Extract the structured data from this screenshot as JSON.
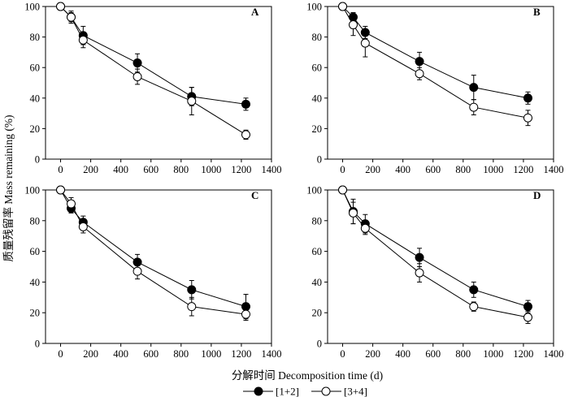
{
  "figure": {
    "ylabel": "质量残留率 Mass remaining (%)",
    "xlabel": "分解时间 Decomposition time (d)"
  },
  "legend": {
    "items": [
      {
        "label": "[1+2]",
        "marker": "filled-circle",
        "color": "#000000"
      },
      {
        "label": "[3+4]",
        "marker": "open-circle",
        "color": "#000000"
      }
    ]
  },
  "chart_data": [
    {
      "type": "line",
      "panel": "A",
      "x": [
        0,
        70,
        150,
        510,
        870,
        1230
      ],
      "xlim": [
        -100,
        1400
      ],
      "ylim": [
        0,
        100
      ],
      "xticks": [
        0,
        200,
        400,
        600,
        800,
        1000,
        1200,
        1400
      ],
      "yticks": [
        0,
        20,
        40,
        60,
        80,
        100
      ],
      "series": [
        {
          "name": "[1+2]",
          "values": [
            100,
            93,
            81,
            63,
            41,
            36
          ],
          "errors": [
            0,
            3,
            6,
            6,
            6,
            4
          ]
        },
        {
          "name": "[3+4]",
          "values": [
            100,
            93,
            78,
            54,
            38,
            16
          ],
          "errors": [
            0,
            4,
            5,
            5,
            9,
            3
          ]
        }
      ]
    },
    {
      "type": "line",
      "panel": "B",
      "x": [
        0,
        70,
        150,
        510,
        870,
        1230
      ],
      "xlim": [
        -100,
        1400
      ],
      "ylim": [
        0,
        100
      ],
      "xticks": [
        0,
        200,
        400,
        600,
        800,
        1000,
        1200,
        1400
      ],
      "yticks": [
        0,
        20,
        40,
        60,
        80,
        100
      ],
      "series": [
        {
          "name": "[1+2]",
          "values": [
            100,
            93,
            83,
            64,
            47,
            40
          ],
          "errors": [
            0,
            3,
            4,
            6,
            8,
            4
          ]
        },
        {
          "name": "[3+4]",
          "values": [
            100,
            88,
            76,
            56,
            34,
            27
          ],
          "errors": [
            0,
            7,
            9,
            4,
            5,
            5
          ]
        }
      ]
    },
    {
      "type": "line",
      "panel": "C",
      "x": [
        0,
        70,
        150,
        510,
        870,
        1230
      ],
      "xlim": [
        -100,
        1400
      ],
      "ylim": [
        0,
        100
      ],
      "xticks": [
        0,
        200,
        400,
        600,
        800,
        1000,
        1200,
        1400
      ],
      "yticks": [
        0,
        20,
        40,
        60,
        80,
        100
      ],
      "series": [
        {
          "name": "[1+2]",
          "values": [
            100,
            88,
            79,
            53,
            35,
            24
          ],
          "errors": [
            0,
            3,
            4,
            5,
            6,
            8
          ]
        },
        {
          "name": "[3+4]",
          "values": [
            100,
            91,
            76,
            47,
            24,
            19
          ],
          "errors": [
            0,
            4,
            4,
            5,
            6,
            4
          ]
        }
      ]
    },
    {
      "type": "line",
      "panel": "D",
      "x": [
        0,
        70,
        150,
        510,
        870,
        1230
      ],
      "xlim": [
        -100,
        1400
      ],
      "ylim": [
        0,
        100
      ],
      "xticks": [
        0,
        200,
        400,
        600,
        800,
        1000,
        1200,
        1400
      ],
      "yticks": [
        0,
        20,
        40,
        60,
        80,
        100
      ],
      "series": [
        {
          "name": "[1+2]",
          "values": [
            100,
            86,
            78,
            56,
            35,
            24
          ],
          "errors": [
            0,
            8,
            6,
            6,
            5,
            4
          ]
        },
        {
          "name": "[3+4]",
          "values": [
            100,
            85,
            75,
            46,
            24,
            17
          ],
          "errors": [
            0,
            7,
            4,
            6,
            3,
            4
          ]
        }
      ]
    }
  ]
}
